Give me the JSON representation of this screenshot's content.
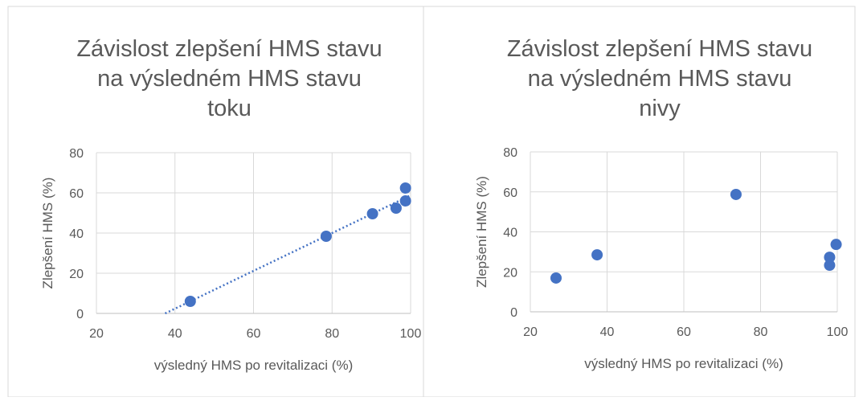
{
  "chart_data": [
    {
      "type": "scatter",
      "title": [
        "Závislost zlepšení HMS stavu",
        "na výsledném HMS stavu",
        "toku"
      ],
      "x_label": "výsledný HMS po revitalizaci (%)",
      "y_label": "Zlepšení HMS (%)",
      "x": [
        43.9,
        78.5,
        90.3,
        96.3,
        98.7,
        98.7
      ],
      "values": [
        6,
        38.4,
        49.6,
        52.4,
        56,
        62.4
      ],
      "color": "#4472c4",
      "trendline": {
        "x": [
          37.5,
          100
        ],
        "values": [
          0,
          58.8
        ],
        "color": "#4472c4"
      },
      "xlim": [
        20,
        100
      ],
      "xticks": [
        20,
        40,
        60,
        80,
        100
      ],
      "ylim": [
        0,
        80
      ],
      "yticks": [
        0,
        20,
        40,
        60,
        80
      ],
      "grid": true
    },
    {
      "type": "scatter",
      "title": [
        "Závislost zlepšení HMS stavu",
        "na výsledném HMS stavu",
        "nivy"
      ],
      "x_label": "výsledný HMS po revitalizaci (%)",
      "y_label": "Zlepšení HMS (%)",
      "x": [
        26.7,
        37.4,
        73.6,
        98,
        98,
        99.7
      ],
      "values": [
        16.9,
        28.5,
        58.7,
        27.3,
        23.3,
        33.7
      ],
      "color": "#4472c4",
      "xlim": [
        20,
        100
      ],
      "xticks": [
        20,
        40,
        60,
        80,
        100
      ],
      "ylim": [
        0,
        80
      ],
      "yticks": [
        0,
        20,
        40,
        60,
        80
      ],
      "grid": true
    }
  ]
}
